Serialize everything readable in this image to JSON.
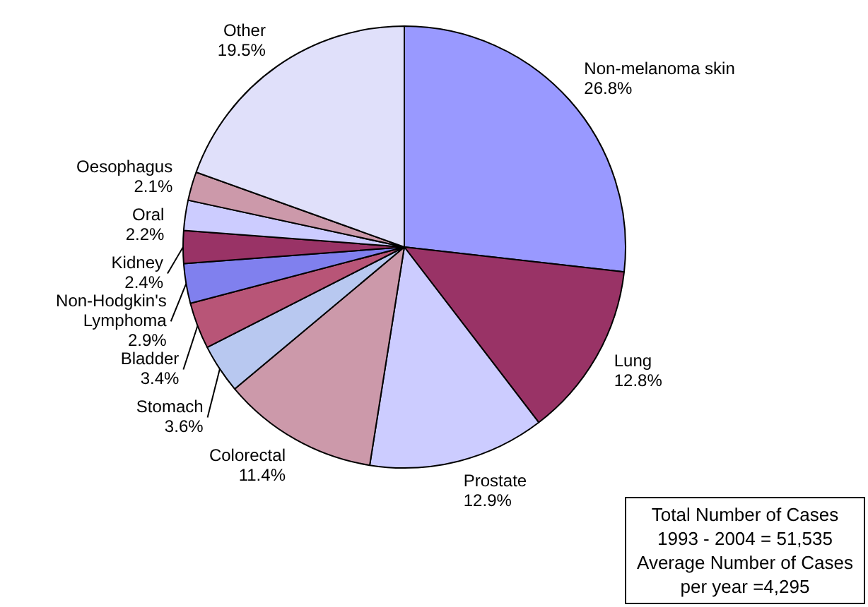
{
  "chart_data": {
    "type": "pie",
    "categories": [
      "Non-melanoma skin",
      "Lung",
      "Prostate",
      "Colorectal",
      "Stomach",
      "Bladder",
      "Non-Hodgkin's Lymphoma",
      "Kidney",
      "Oral",
      "Oesophagus",
      "Other"
    ],
    "values": [
      26.8,
      12.8,
      12.9,
      11.4,
      3.6,
      3.4,
      2.9,
      2.4,
      2.2,
      2.1,
      19.5
    ],
    "value_labels": [
      "26.8%",
      "12.8%",
      "12.9%",
      "11.4%",
      "3.6%",
      "3.4%",
      "2.9%",
      "2.4%",
      "2.2%",
      "2.1%",
      "19.5%"
    ],
    "colors": [
      "#9999ff",
      "#993366",
      "#ccccff",
      "#cc99aa",
      "#b8c8f0",
      "#b85577",
      "#8080ee",
      "#993366",
      "#ccccff",
      "#cc99aa",
      "#e0e0fa"
    ],
    "legend": false,
    "annotations": [
      "Total Number of Cases 1993 - 2004 = 51,535 Average Number of Cases per year =4,295"
    ]
  }
}
